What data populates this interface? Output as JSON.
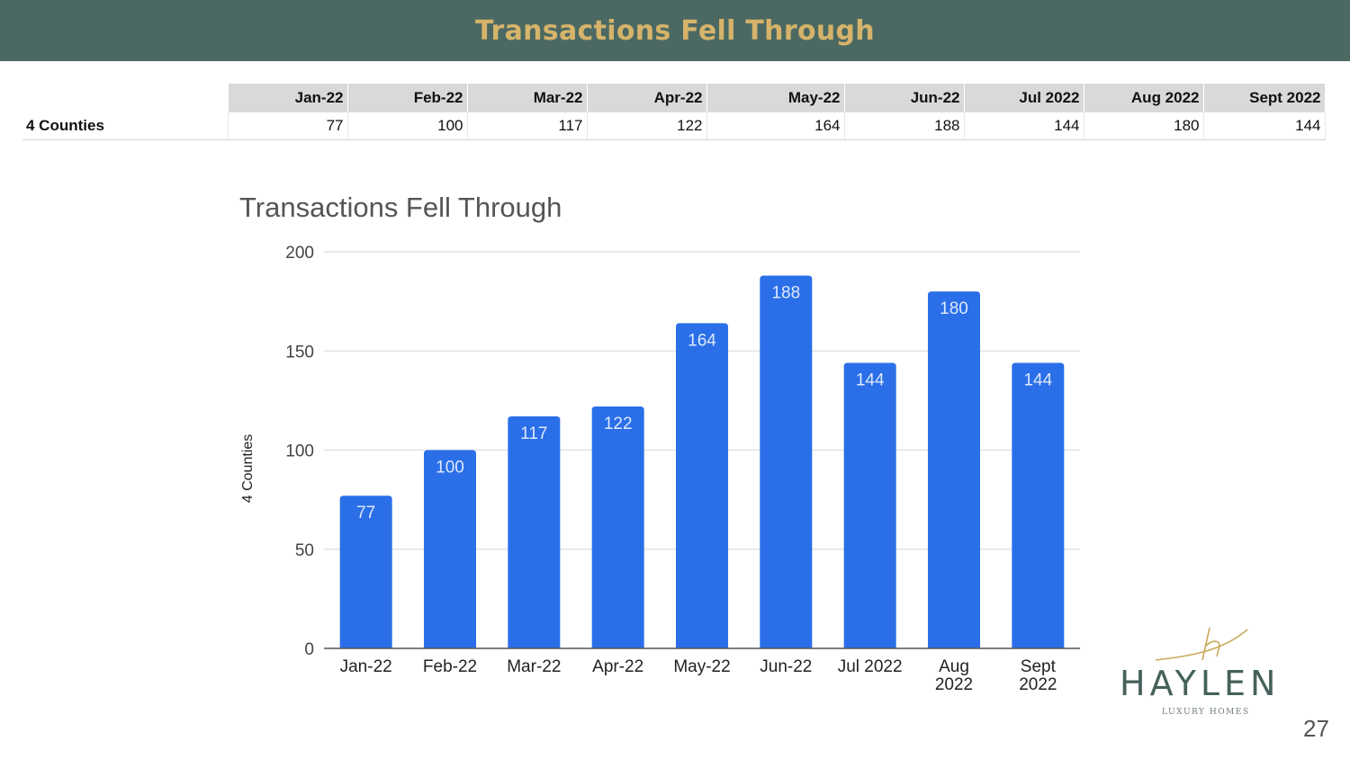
{
  "header": {
    "title": "Transactions Fell Through"
  },
  "table": {
    "columns": [
      "Jan-22",
      "Feb-22",
      "Mar-22",
      "Apr-22",
      "May-22",
      "Jun-22",
      "Jul 2022",
      "Aug 2022",
      "Sept 2022"
    ],
    "row_label": "4 Counties",
    "values": [
      "77",
      "100",
      "117",
      "122",
      "164",
      "188",
      "144",
      "180",
      "144"
    ]
  },
  "chart_data": {
    "type": "bar",
    "title": "Transactions Fell Through",
    "xlabel": "",
    "ylabel": "4 Counties",
    "categories": [
      "Jan-22",
      "Feb-22",
      "Mar-22",
      "Apr-22",
      "May-22",
      "Jun-22",
      "Jul 2022",
      "Aug 2022",
      "Sept 2022"
    ],
    "category_lines": [
      [
        "Jan-22"
      ],
      [
        "Feb-22"
      ],
      [
        "Mar-22"
      ],
      [
        "Apr-22"
      ],
      [
        "May-22"
      ],
      [
        "Jun-22"
      ],
      [
        "Jul 2022"
      ],
      [
        "Aug",
        "2022"
      ],
      [
        "Sept",
        "2022"
      ]
    ],
    "values": [
      77,
      100,
      117,
      122,
      164,
      188,
      144,
      180,
      144
    ],
    "ylim": [
      0,
      200
    ],
    "yticks": [
      0,
      50,
      100,
      150,
      200
    ],
    "grid": true,
    "bar_color": "#2a6fe8"
  },
  "logo": {
    "name": "HAYLEN",
    "tagline": "LUXURY HOMES"
  },
  "page": {
    "number": "27"
  },
  "colors": {
    "header_bg": "#4b6962",
    "title_gold": "#d6b36a",
    "bar_blue": "#2a6fe8"
  }
}
